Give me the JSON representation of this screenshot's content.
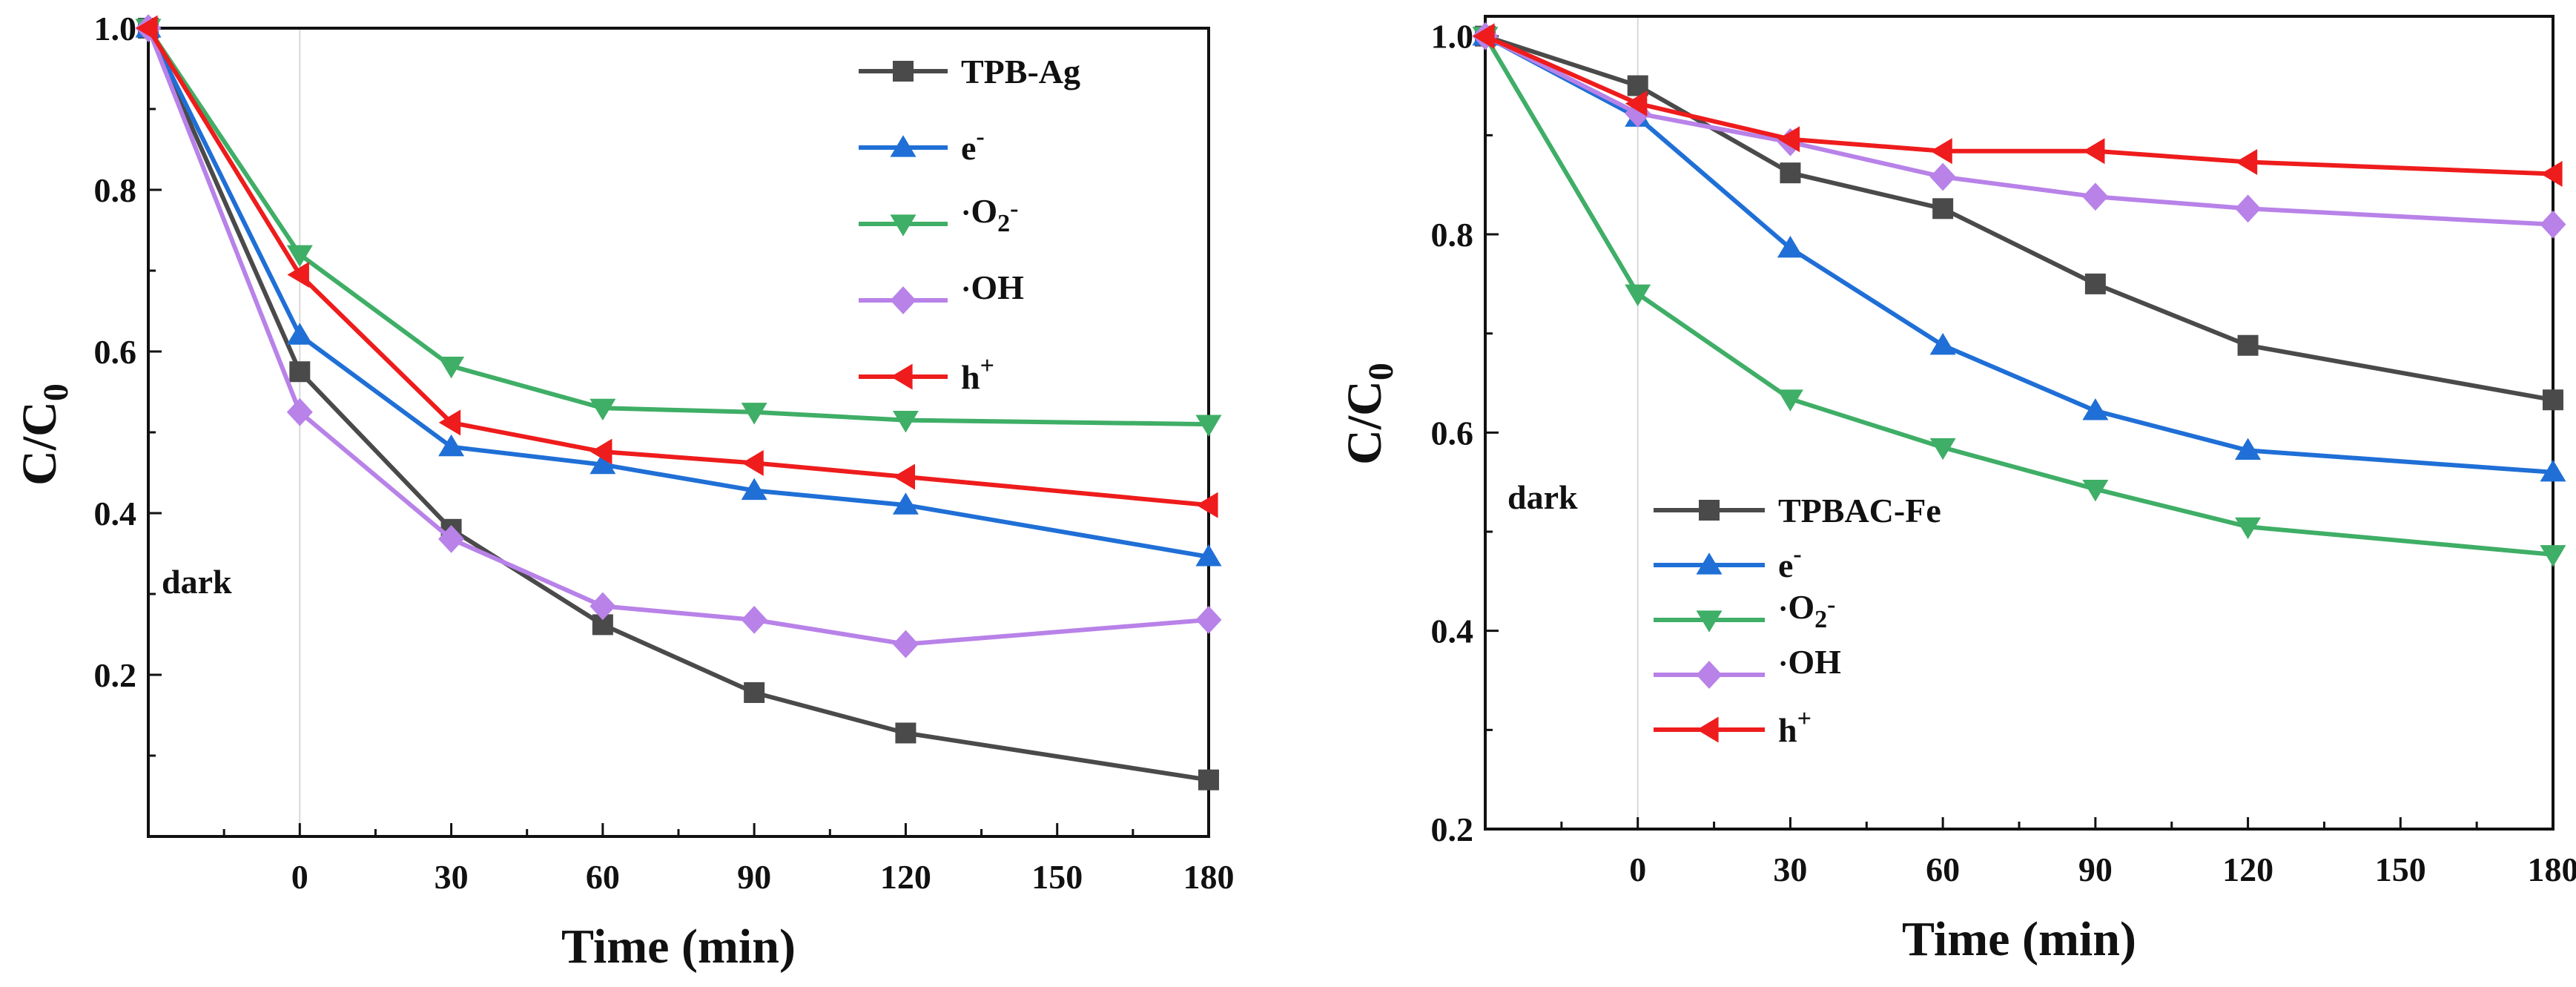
{
  "chart_data": [
    {
      "type": "line",
      "xlabel": "Time (min)",
      "ylabel": {
        "main": "C/C",
        "sub": "0"
      },
      "x_ticks": [
        "0",
        "30",
        "60",
        "90",
        "120",
        "150",
        "180"
      ],
      "y_ticks": [
        "0.2",
        "0.4",
        "0.6",
        "0.8",
        "1.0"
      ],
      "xlim": [
        -30,
        180
      ],
      "ylim": [
        0.0,
        1.0
      ],
      "annotation": "dark",
      "legend_position": "top-right",
      "x": [
        -30,
        0,
        30,
        60,
        90,
        120,
        180
      ],
      "series": [
        {
          "name": "TPB-Ag",
          "label": {
            "base": "TPB-Ag",
            "sub": "",
            "sup": "",
            "pre": ""
          },
          "marker": "square",
          "color": "#4a4a4a",
          "values": [
            1.0,
            0.575,
            0.38,
            0.262,
            0.178,
            0.128,
            0.07
          ]
        },
        {
          "name": "e-",
          "label": {
            "base": "e",
            "sub": "",
            "sup": "-",
            "pre": ""
          },
          "marker": "triangle-up",
          "color": "#1f6fd6",
          "values": [
            1.0,
            0.62,
            0.482,
            0.46,
            0.428,
            0.41,
            0.346
          ]
        },
        {
          "name": "·O2-",
          "label": {
            "base": "O",
            "sub": "2",
            "sup": "-",
            "pre": "·"
          },
          "marker": "triangle-down",
          "color": "#3fae66",
          "values": [
            1.0,
            0.72,
            0.582,
            0.53,
            0.525,
            0.515,
            0.51
          ]
        },
        {
          "name": "·OH",
          "label": {
            "base": "OH",
            "sub": "",
            "sup": "",
            "pre": "·"
          },
          "marker": "diamond",
          "color": "#b882e8",
          "values": [
            1.0,
            0.525,
            0.368,
            0.285,
            0.268,
            0.238,
            0.268
          ]
        },
        {
          "name": "h+",
          "label": {
            "base": "h",
            "sub": "",
            "sup": "+",
            "pre": ""
          },
          "marker": "triangle-left",
          "color": "#ee1c1c",
          "values": [
            1.0,
            0.695,
            0.512,
            0.476,
            0.462,
            0.445,
            0.41
          ]
        }
      ]
    },
    {
      "type": "line",
      "xlabel": "Time (min)",
      "ylabel": {
        "main": "C/C",
        "sub": "0"
      },
      "x_ticks": [
        "0",
        "30",
        "60",
        "90",
        "120",
        "150",
        "180"
      ],
      "y_ticks": [
        "0.2",
        "0.4",
        "0.6",
        "0.8",
        "1.0"
      ],
      "xlim": [
        -30,
        180
      ],
      "ylim": [
        0.2,
        1.02
      ],
      "annotation": "dark",
      "legend_position": "middle-left",
      "x": [
        -30,
        0,
        30,
        60,
        90,
        120,
        180
      ],
      "series": [
        {
          "name": "TPBAC-Fe",
          "label": {
            "base": "TPBAC-Fe",
            "sub": "",
            "sup": "",
            "pre": ""
          },
          "marker": "square",
          "color": "#4a4a4a",
          "values": [
            1.0,
            0.95,
            0.862,
            0.826,
            0.75,
            0.688,
            0.633
          ]
        },
        {
          "name": "e-",
          "label": {
            "base": "e",
            "sub": "",
            "sup": "-",
            "pre": ""
          },
          "marker": "triangle-up",
          "color": "#1f6fd6",
          "values": [
            1.0,
            0.918,
            0.786,
            0.688,
            0.622,
            0.582,
            0.56
          ]
        },
        {
          "name": "·O2-",
          "label": {
            "base": "O",
            "sub": "2",
            "sup": "-",
            "pre": "·"
          },
          "marker": "triangle-down",
          "color": "#3fae66",
          "values": [
            1.0,
            0.74,
            0.634,
            0.585,
            0.543,
            0.505,
            0.477
          ]
        },
        {
          "name": "·OH",
          "label": {
            "base": "OH",
            "sub": "",
            "sup": "",
            "pre": "·"
          },
          "marker": "diamond",
          "color": "#b882e8",
          "values": [
            1.0,
            0.922,
            0.893,
            0.858,
            0.838,
            0.826,
            0.81
          ]
        },
        {
          "name": "h+",
          "label": {
            "base": "h",
            "sub": "",
            "sup": "+",
            "pre": ""
          },
          "marker": "triangle-left",
          "color": "#ee1c1c",
          "values": [
            1.0,
            0.932,
            0.896,
            0.884,
            0.884,
            0.873,
            0.861
          ]
        }
      ]
    }
  ]
}
